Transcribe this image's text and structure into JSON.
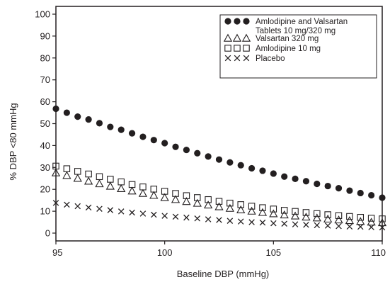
{
  "chart_data": {
    "type": "scatter",
    "title": "",
    "xlabel": "Baseline DBP (mmHg)",
    "ylabel": "% DBP <80 mmHg",
    "xlim": [
      95,
      110
    ],
    "ylim": [
      0,
      100
    ],
    "x_ticks": [
      "95",
      "100",
      "105",
      "110"
    ],
    "y_ticks": [
      "0",
      "10",
      "20",
      "30",
      "40",
      "50",
      "60",
      "70",
      "80",
      "90",
      "100"
    ],
    "grid": false,
    "legend_position": "top-right",
    "series": [
      {
        "name": "Amlodipine and Valsartan Tablets 10 mg/320 mg",
        "name_lines": [
          "Amlodipine and Valsartan",
          "Tablets 10 mg/320 mg"
        ],
        "marker": "filled-circle",
        "color": "#231f20",
        "points": [
          [
            95.0,
            56.8
          ],
          [
            95.5,
            55.0
          ],
          [
            96.0,
            53.2
          ],
          [
            96.5,
            51.9
          ],
          [
            97.0,
            50.2
          ],
          [
            97.5,
            48.5
          ],
          [
            98.0,
            47.2
          ],
          [
            98.5,
            45.6
          ],
          [
            99.0,
            44.0
          ],
          [
            99.5,
            42.5
          ],
          [
            100.0,
            41.1
          ],
          [
            100.5,
            39.4
          ],
          [
            101.0,
            38.0
          ],
          [
            101.5,
            36.5
          ],
          [
            102.0,
            35.0
          ],
          [
            102.5,
            33.6
          ],
          [
            103.0,
            32.3
          ],
          [
            103.5,
            31.0
          ],
          [
            104.0,
            29.6
          ],
          [
            104.5,
            28.5
          ],
          [
            105.0,
            27.2
          ],
          [
            105.5,
            25.8
          ],
          [
            106.0,
            24.8
          ],
          [
            106.5,
            23.7
          ],
          [
            107.0,
            22.5
          ],
          [
            107.5,
            21.5
          ],
          [
            108.0,
            20.5
          ],
          [
            108.5,
            19.4
          ],
          [
            109.0,
            18.3
          ],
          [
            109.5,
            17.3
          ],
          [
            110.0,
            16.2
          ]
        ]
      },
      {
        "name": "Valsartan 320 mg",
        "name_lines": [
          "Valsartan 320 mg"
        ],
        "marker": "open-triangle",
        "color": "#231f20",
        "points": [
          [
            95.0,
            27.5
          ],
          [
            95.5,
            26.3
          ],
          [
            96.0,
            25.0
          ],
          [
            96.5,
            23.7
          ],
          [
            97.0,
            22.5
          ],
          [
            97.5,
            21.4
          ],
          [
            98.0,
            20.3
          ],
          [
            98.5,
            19.2
          ],
          [
            99.0,
            18.1
          ],
          [
            99.5,
            17.2
          ],
          [
            100.0,
            16.2
          ],
          [
            100.5,
            15.3
          ],
          [
            101.0,
            14.4
          ],
          [
            101.5,
            13.6
          ],
          [
            102.0,
            12.8
          ],
          [
            102.5,
            12.0
          ],
          [
            103.0,
            11.3
          ],
          [
            103.5,
            10.6
          ],
          [
            104.0,
            10.0
          ],
          [
            104.5,
            9.4
          ],
          [
            105.0,
            8.8
          ],
          [
            105.5,
            8.3
          ],
          [
            106.0,
            7.8
          ],
          [
            106.5,
            7.3
          ],
          [
            107.0,
            6.9
          ],
          [
            107.5,
            6.4
          ],
          [
            108.0,
            6.0
          ],
          [
            108.5,
            5.7
          ],
          [
            109.0,
            5.3
          ],
          [
            109.5,
            5.0
          ],
          [
            110.0,
            4.7
          ]
        ]
      },
      {
        "name": "Amlodipine 10 mg",
        "name_lines": [
          "Amlodipine 10 mg"
        ],
        "marker": "open-square",
        "color": "#231f20",
        "points": [
          [
            95.0,
            30.6
          ],
          [
            95.5,
            29.4
          ],
          [
            96.0,
            28.2
          ],
          [
            96.5,
            27.0
          ],
          [
            97.0,
            25.8
          ],
          [
            97.5,
            24.6
          ],
          [
            98.0,
            23.4
          ],
          [
            98.5,
            22.2
          ],
          [
            99.0,
            21.1
          ],
          [
            99.5,
            20.1
          ],
          [
            100.0,
            19.1
          ],
          [
            100.5,
            18.1
          ],
          [
            101.0,
            17.1
          ],
          [
            101.5,
            16.2
          ],
          [
            102.0,
            15.3
          ],
          [
            102.5,
            14.5
          ],
          [
            103.0,
            13.7
          ],
          [
            103.5,
            13.0
          ],
          [
            104.0,
            12.3
          ],
          [
            104.5,
            11.6
          ],
          [
            105.0,
            11.0
          ],
          [
            105.5,
            10.4
          ],
          [
            106.0,
            9.9
          ],
          [
            106.5,
            9.4
          ],
          [
            107.0,
            8.9
          ],
          [
            107.5,
            8.4
          ],
          [
            108.0,
            8.0
          ],
          [
            108.5,
            7.6
          ],
          [
            109.0,
            7.2
          ],
          [
            109.5,
            6.8
          ],
          [
            110.0,
            6.5
          ]
        ]
      },
      {
        "name": "Placebo",
        "name_lines": [
          "Placebo"
        ],
        "marker": "x",
        "color": "#231f20",
        "points": [
          [
            95.0,
            13.8
          ],
          [
            95.5,
            13.0
          ],
          [
            96.0,
            12.3
          ],
          [
            96.5,
            11.7
          ],
          [
            97.0,
            11.1
          ],
          [
            97.5,
            10.5
          ],
          [
            98.0,
            9.9
          ],
          [
            98.5,
            9.4
          ],
          [
            99.0,
            8.9
          ],
          [
            99.5,
            8.4
          ],
          [
            100.0,
            7.9
          ],
          [
            100.5,
            7.5
          ],
          [
            101.0,
            7.1
          ],
          [
            101.5,
            6.7
          ],
          [
            102.0,
            6.3
          ],
          [
            102.5,
            6.0
          ],
          [
            103.0,
            5.6
          ],
          [
            103.5,
            5.3
          ],
          [
            104.0,
            5.0
          ],
          [
            104.5,
            4.8
          ],
          [
            105.0,
            4.5
          ],
          [
            105.5,
            4.3
          ],
          [
            106.0,
            4.0
          ],
          [
            106.5,
            3.8
          ],
          [
            107.0,
            3.6
          ],
          [
            107.5,
            3.4
          ],
          [
            108.0,
            3.2
          ],
          [
            108.5,
            3.0
          ],
          [
            109.0,
            2.9
          ],
          [
            109.5,
            2.7
          ],
          [
            110.0,
            2.6
          ]
        ]
      }
    ]
  }
}
